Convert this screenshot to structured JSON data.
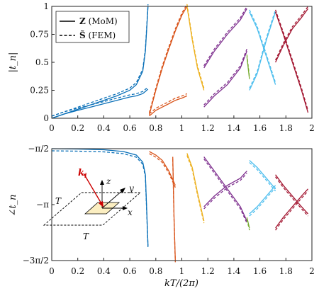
{
  "chart_data": [
    {
      "type": "line",
      "panel": "top",
      "ylabel": "|t_n|",
      "ylim": [
        0,
        1
      ],
      "xlim": [
        0,
        2
      ],
      "grid": false,
      "yticks": [
        "0",
        "0.25",
        "0.5",
        "0.75",
        "1"
      ],
      "legend": {
        "placement": "top-left",
        "entries": [
          {
            "bold": "Z",
            "text": " (MoM)",
            "style": "solid"
          },
          {
            "bold": "S̃",
            "text": " (FEM)",
            "style": "dashed"
          }
        ]
      },
      "series": [
        {
          "color": "#0a70b8",
          "x": [
            0,
            0.1,
            0.2,
            0.3,
            0.4,
            0.5,
            0.6,
            0.65,
            0.7,
            0.72,
            0.74
          ],
          "y": [
            0,
            0.04,
            0.08,
            0.12,
            0.16,
            0.2,
            0.25,
            0.3,
            0.42,
            0.6,
            1.0
          ]
        },
        {
          "color": "#0a70b8",
          "x": [
            0,
            0.1,
            0.2,
            0.3,
            0.4,
            0.5,
            0.6,
            0.65,
            0.7,
            0.72,
            0.74
          ],
          "y": [
            0,
            0.04,
            0.07,
            0.1,
            0.13,
            0.16,
            0.19,
            0.2,
            0.22,
            0.24,
            0.26
          ]
        },
        {
          "color": "#d95319",
          "x": [
            0.75,
            0.8,
            0.85,
            0.9,
            0.95,
            1.0,
            1.04
          ],
          "y": [
            0.03,
            0.25,
            0.45,
            0.62,
            0.78,
            0.92,
            1.0
          ]
        },
        {
          "color": "#d95319",
          "x": [
            0.75,
            0.8,
            0.85,
            0.9,
            0.95,
            1.0,
            1.04
          ],
          "y": [
            0.02,
            0.07,
            0.1,
            0.13,
            0.16,
            0.18,
            0.2
          ]
        },
        {
          "color": "#edb120",
          "x": [
            1.04,
            1.08,
            1.12,
            1.17
          ],
          "y": [
            1.0,
            0.7,
            0.45,
            0.25
          ]
        },
        {
          "color": "#7e2f8e",
          "x": [
            1.17,
            1.25,
            1.35,
            1.45,
            1.5
          ],
          "y": [
            0.45,
            0.6,
            0.75,
            0.88,
            0.98
          ]
        },
        {
          "color": "#7e2f8e",
          "x": [
            1.17,
            1.25,
            1.35,
            1.45,
            1.5
          ],
          "y": [
            0.1,
            0.2,
            0.3,
            0.45,
            0.6
          ]
        },
        {
          "color": "#77ac30",
          "x": [
            1.5,
            1.52
          ],
          "y": [
            0.55,
            0.35
          ]
        },
        {
          "color": "#4dbeee",
          "x": [
            1.52,
            1.58,
            1.65,
            1.72
          ],
          "y": [
            0.95,
            0.8,
            0.55,
            0.3
          ]
        },
        {
          "color": "#4dbeee",
          "x": [
            1.52,
            1.58,
            1.65,
            1.72
          ],
          "y": [
            0.25,
            0.4,
            0.7,
            0.95
          ]
        },
        {
          "color": "#a2142f",
          "x": [
            1.72,
            1.78,
            1.85,
            1.92,
            1.97
          ],
          "y": [
            0.95,
            0.75,
            0.5,
            0.25,
            0.05
          ]
        },
        {
          "color": "#a2142f",
          "x": [
            1.72,
            1.78,
            1.85,
            1.92,
            1.97
          ],
          "y": [
            0.5,
            0.65,
            0.8,
            0.9,
            0.98
          ]
        }
      ]
    },
    {
      "type": "line",
      "panel": "bottom",
      "xlabel": "kT/(2π)",
      "ylabel": "∠t_n",
      "xlim": [
        0,
        2
      ],
      "ylim": [
        -4.712,
        -1.571
      ],
      "grid": false,
      "xticks": [
        "0",
        "0.2",
        "0.4",
        "0.6",
        "0.8",
        "1",
        "1.2",
        "1.4",
        "1.6",
        "1.8",
        "2"
      ],
      "yticks": [
        "−π/2",
        "−π",
        "−3π/2"
      ],
      "series": [
        {
          "color": "#0a70b8",
          "x": [
            0,
            0.2,
            0.4,
            0.55,
            0.65,
            0.7,
            0.72,
            0.74
          ],
          "y": [
            -1.571,
            -1.58,
            -1.6,
            -1.65,
            -1.75,
            -1.95,
            -2.3,
            -4.3
          ]
        },
        {
          "color": "#d95319",
          "x": [
            0.75,
            0.8,
            0.85,
            0.9,
            0.95
          ],
          "y": [
            -1.65,
            -1.75,
            -1.9,
            -2.2,
            -2.6
          ]
        },
        {
          "color": "#d95319",
          "x": [
            0.93,
            0.94,
            0.95
          ],
          "y": [
            -1.8,
            -3.5,
            -4.7
          ]
        },
        {
          "color": "#edb120",
          "x": [
            1.04,
            1.08,
            1.12,
            1.17
          ],
          "y": [
            -1.7,
            -2.1,
            -2.8,
            -3.6
          ]
        },
        {
          "color": "#7e2f8e",
          "x": [
            1.17,
            1.25,
            1.35,
            1.45,
            1.5
          ],
          "y": [
            -1.8,
            -2.2,
            -2.7,
            -3.2,
            -3.6
          ]
        },
        {
          "color": "#7e2f8e",
          "x": [
            1.17,
            1.25,
            1.35,
            1.45,
            1.5
          ],
          "y": [
            -3.2,
            -2.9,
            -2.6,
            -2.4,
            -2.2
          ]
        },
        {
          "color": "#77ac30",
          "x": [
            1.5,
            1.52
          ],
          "y": [
            -3.5,
            -3.8
          ]
        },
        {
          "color": "#4dbeee",
          "x": [
            1.52,
            1.58,
            1.65,
            1.72
          ],
          "y": [
            -1.9,
            -2.1,
            -2.4,
            -2.7
          ]
        },
        {
          "color": "#4dbeee",
          "x": [
            1.52,
            1.58,
            1.65,
            1.72
          ],
          "y": [
            -3.4,
            -3.2,
            -2.9,
            -2.6
          ]
        },
        {
          "color": "#a2142f",
          "x": [
            1.72,
            1.78,
            1.85,
            1.92,
            1.97
          ],
          "y": [
            -2.3,
            -2.6,
            -2.9,
            -3.2,
            -3.4
          ]
        },
        {
          "color": "#a2142f",
          "x": [
            1.72,
            1.78,
            1.85,
            1.92,
            1.97
          ],
          "y": [
            -3.8,
            -3.5,
            -3.2,
            -2.9,
            -2.7
          ]
        }
      ]
    }
  ],
  "inset": {
    "k_label": "k",
    "k_sub": "i",
    "z_label": "z",
    "y_label": "y",
    "x_label": "x",
    "T_top": "T",
    "T_bottom": "T",
    "k_color": "#cc0000",
    "patch_color": "#fbeec1"
  },
  "colors": {
    "blue": "#0a70b8",
    "orange": "#d95319",
    "yellow": "#edb120",
    "purple": "#7e2f8e",
    "green": "#77ac30",
    "cyan": "#4dbeee",
    "crimson": "#a2142f"
  }
}
